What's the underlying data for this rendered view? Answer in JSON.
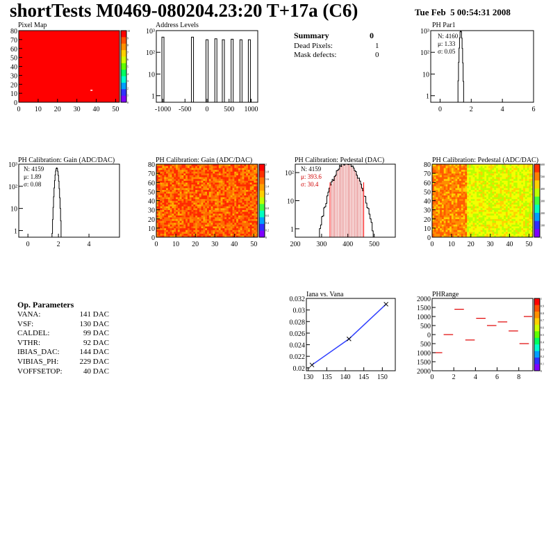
{
  "header": {
    "title": "shortTests M0469-080204.23:20 T+17a (C6)",
    "date": "Tue Feb  5 00:54:31 2008"
  },
  "summary": {
    "title": "Summary",
    "value": "0",
    "rows": [
      {
        "label": "Dead Pixels:",
        "value": "1"
      },
      {
        "label": "Mask defects:",
        "value": "0"
      }
    ]
  },
  "op_parameters": {
    "title": "Op. Parameters",
    "rows": [
      {
        "label": "VANA:",
        "value": "141 DAC"
      },
      {
        "label": "VSF:",
        "value": "130 DAC"
      },
      {
        "label": "CALDEL:",
        "value": "99 DAC"
      },
      {
        "label": "VTHR:",
        "value": "92 DAC"
      },
      {
        "label": "IBIAS_DAC:",
        "value": "144 DAC"
      },
      {
        "label": "VIBIAS_PH:",
        "value": "229 DAC"
      },
      {
        "label": "VOFFSETOP:",
        "value": "40 DAC"
      }
    ]
  },
  "chart_data": [
    {
      "type": "heatmap",
      "title": "Pixel Map",
      "xlim": [
        0,
        52
      ],
      "ylim": [
        0,
        80
      ],
      "x_ticks": [
        "0",
        "10",
        "20",
        "30",
        "40",
        "50"
      ],
      "y_ticks": [
        "0",
        "10",
        "20",
        "30",
        "40",
        "50",
        "60",
        "70",
        "80"
      ],
      "palette": [
        "#ff0000"
      ],
      "colorbar_ticks": [
        "0",
        "1",
        "2",
        "3",
        "4",
        "5",
        "6",
        "7",
        "8",
        "9",
        "10"
      ],
      "dead_pixels": [
        {
          "x": 37,
          "y": 14
        }
      ]
    },
    {
      "type": "bar",
      "title": "Address Levels",
      "log_y": true,
      "xlim": [
        -1150,
        1150
      ],
      "x_ticks": [
        "-1000",
        "-500",
        "0",
        "500",
        "1000"
      ],
      "y_ticks": [
        "1",
        "10",
        "10²",
        "10³"
      ],
      "peaks": [
        {
          "x": -1000,
          "value": 500
        },
        {
          "x": -330,
          "value": 500
        },
        {
          "x": 0,
          "value": 380
        },
        {
          "x": 200,
          "value": 420
        },
        {
          "x": 370,
          "value": 380
        },
        {
          "x": 570,
          "value": 400
        },
        {
          "x": 770,
          "value": 380
        },
        {
          "x": 960,
          "value": 380
        }
      ]
    },
    {
      "type": "bar",
      "title": "PH Par1",
      "log_y": true,
      "xlim": [
        -0.6,
        6
      ],
      "x_ticks": [
        "0",
        "2",
        "4",
        "6"
      ],
      "y_ticks": [
        "1",
        "10",
        "10²",
        "10³"
      ],
      "stats": [
        "N: 4160",
        "μ: 1.33",
        "σ: 0.05"
      ],
      "mean": 1.33,
      "sigma": 0.05,
      "entries": 4160
    },
    {
      "type": "bar",
      "title": "PH Calibration: Gain (ADC/DAC)",
      "log_y": true,
      "xlim": [
        -0.6,
        6
      ],
      "x_ticks": [
        "0",
        "2",
        "4"
      ],
      "y_ticks": [
        "1",
        "10",
        "10²",
        "10³"
      ],
      "stats": [
        "N: 4159",
        "μ: 1.89",
        "σ: 0.08"
      ],
      "mean": 1.89,
      "sigma": 0.08,
      "entries": 4159
    },
    {
      "type": "heatmap",
      "title": "PH Calibration: Gain (ADC/DAC)",
      "xlim": [
        0,
        52
      ],
      "ylim": [
        0,
        80
      ],
      "x_ticks": [
        "0",
        "10",
        "20",
        "30",
        "40",
        "50"
      ],
      "y_ticks": [
        "0",
        "10",
        "20",
        "30",
        "40",
        "50",
        "60",
        "70",
        "80"
      ],
      "palette": [
        "#ff2a00",
        "#ff6a00",
        "#ff8c00",
        "#ffb000",
        "#ff4500"
      ],
      "colorbar_ticks": [
        "0",
        "0.2",
        "0.4",
        "0.6",
        "0.8",
        "1",
        "1.2",
        "1.4",
        "1.6",
        "1.8",
        "2"
      ]
    },
    {
      "type": "bar",
      "title": "PH Calibration: Pedestal (DAC)",
      "log_y": true,
      "xlim": [
        200,
        580
      ],
      "x_ticks": [
        "200",
        "300",
        "400",
        "500"
      ],
      "y_ticks": [
        "1",
        "10",
        "10²"
      ],
      "stats": [
        "N: 4159",
        "μ: 393.6",
        "σ: 30.4"
      ],
      "mean": 393.6,
      "sigma": 30.4,
      "entries": 4159,
      "fit_range": [
        332,
        460
      ]
    },
    {
      "type": "heatmap",
      "title": "PH Calibration: Pedestal (ADC/DAC)",
      "xlim": [
        0,
        52
      ],
      "ylim": [
        0,
        80
      ],
      "x_ticks": [
        "0",
        "10",
        "20",
        "30",
        "40",
        "50"
      ],
      "y_ticks": [
        "0",
        "10",
        "20",
        "30",
        "40",
        "50",
        "60",
        "70",
        "80"
      ],
      "palette": [
        "#ff8c00",
        "#ffd000",
        "#f4ff00",
        "#b8ff00",
        "#ff5a00"
      ],
      "colorbar_ticks": [
        "0",
        "100",
        "200",
        "300",
        "400",
        "500",
        "600"
      ]
    },
    {
      "type": "line",
      "title": "Iana vs. Vana",
      "x": [
        131,
        141,
        151
      ],
      "y": [
        0.0205,
        0.025,
        0.031
      ],
      "xlim": [
        129.5,
        153.5
      ],
      "ylim": [
        0.0195,
        0.032
      ],
      "x_ticks": [
        "130",
        "135",
        "140",
        "145",
        "150"
      ],
      "y_ticks": [
        "0.02",
        "0.022",
        "0.024",
        "0.026",
        "0.028",
        "0.03",
        "0.032"
      ]
    },
    {
      "type": "scatter",
      "title": "PHRange",
      "xlim": [
        0,
        9.3
      ],
      "ylim": [
        -2000,
        2000
      ],
      "x_ticks": [
        "0",
        "2",
        "4",
        "6",
        "8"
      ],
      "y_ticks": [
        "2000",
        "1500",
        "1000",
        "500",
        "0",
        "500",
        "1000",
        "1500",
        "2000"
      ],
      "segments": [
        {
          "x0": 0,
          "x1": 1,
          "y": -1000
        },
        {
          "x0": 1,
          "x1": 2,
          "y": 0
        },
        {
          "x0": 2,
          "x1": 3,
          "y": 1400
        },
        {
          "x0": 3,
          "x1": 4,
          "y": -300
        },
        {
          "x0": 4,
          "x1": 5,
          "y": 900
        },
        {
          "x0": 5,
          "x1": 6,
          "y": 500
        },
        {
          "x0": 6,
          "x1": 7,
          "y": 700
        },
        {
          "x0": 7,
          "x1": 8,
          "y": 200
        },
        {
          "x0": 8,
          "x1": 9,
          "y": -500
        },
        {
          "x0": 8.4,
          "x1": 9.3,
          "y": 1000
        }
      ],
      "colorbar_ticks": [
        "0",
        "0.1",
        "0.2",
        "0.3",
        "0.4",
        "0.5",
        "0.6",
        "0.7",
        "0.8",
        "0.9",
        "1"
      ]
    }
  ]
}
